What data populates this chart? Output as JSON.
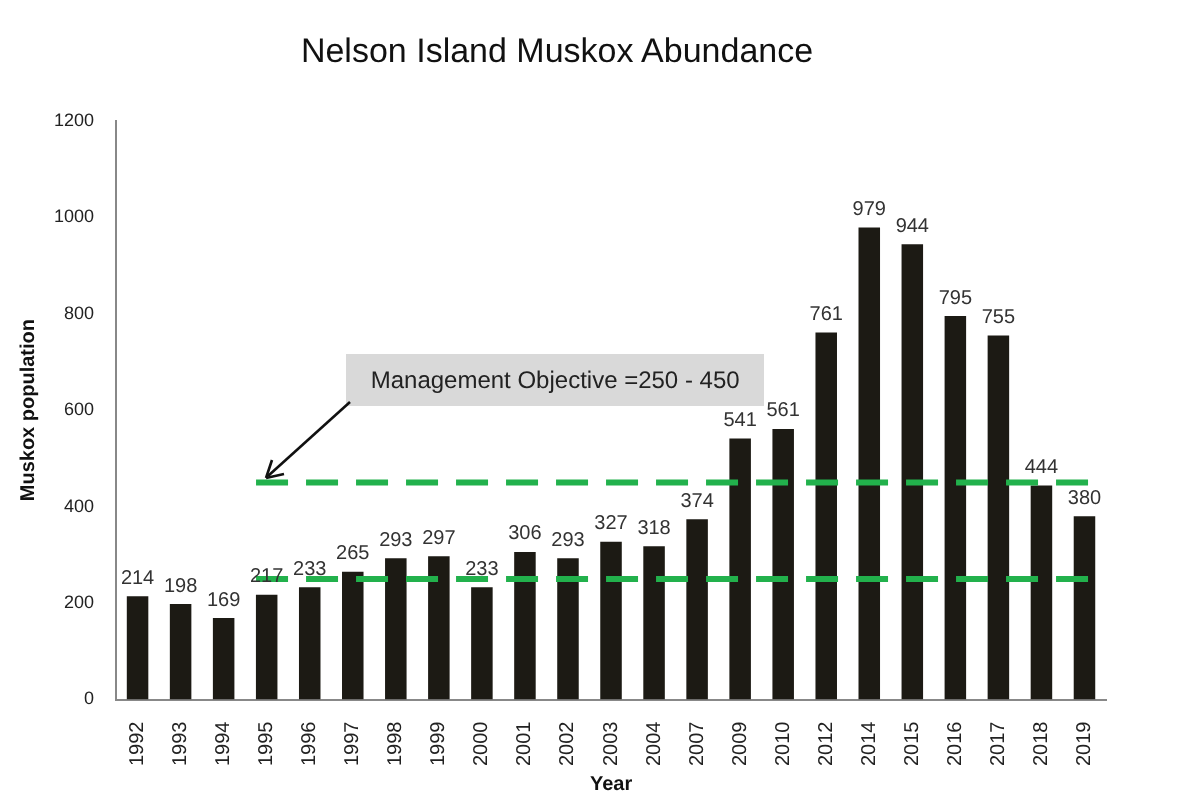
{
  "chart_data": {
    "type": "bar",
    "title": "Nelson Island Muskox Abundance",
    "xlabel": "Year",
    "ylabel": "Muskox population",
    "categories": [
      "1992",
      "1993",
      "1994",
      "1995",
      "1996",
      "1997",
      "1998",
      "1999",
      "2000",
      "2001",
      "2002",
      "2003",
      "2004",
      "2007",
      "2009",
      "2010",
      "2012",
      "2014",
      "2015",
      "2016",
      "2017",
      "2018",
      "2019"
    ],
    "values": [
      214,
      198,
      169,
      217,
      233,
      265,
      293,
      297,
      233,
      306,
      293,
      327,
      318,
      374,
      541,
      561,
      761,
      979,
      944,
      795,
      755,
      444,
      380
    ],
    "color": "#1c1a14",
    "ylim": [
      0,
      1200
    ],
    "yticks": [
      0,
      200,
      400,
      600,
      800,
      1000,
      1200
    ],
    "grid": false,
    "legend": false,
    "data_labels": true,
    "ref_lines": [
      {
        "axis": "y",
        "value": 250,
        "color": "#22b14c",
        "line_style": "dashed"
      },
      {
        "axis": "y",
        "value": 450,
        "color": "#22b14c",
        "line_style": "dashed"
      }
    ],
    "annotations": [
      {
        "text": "Management Objective =250 - 450",
        "x": "1995",
        "y": 450
      }
    ]
  }
}
